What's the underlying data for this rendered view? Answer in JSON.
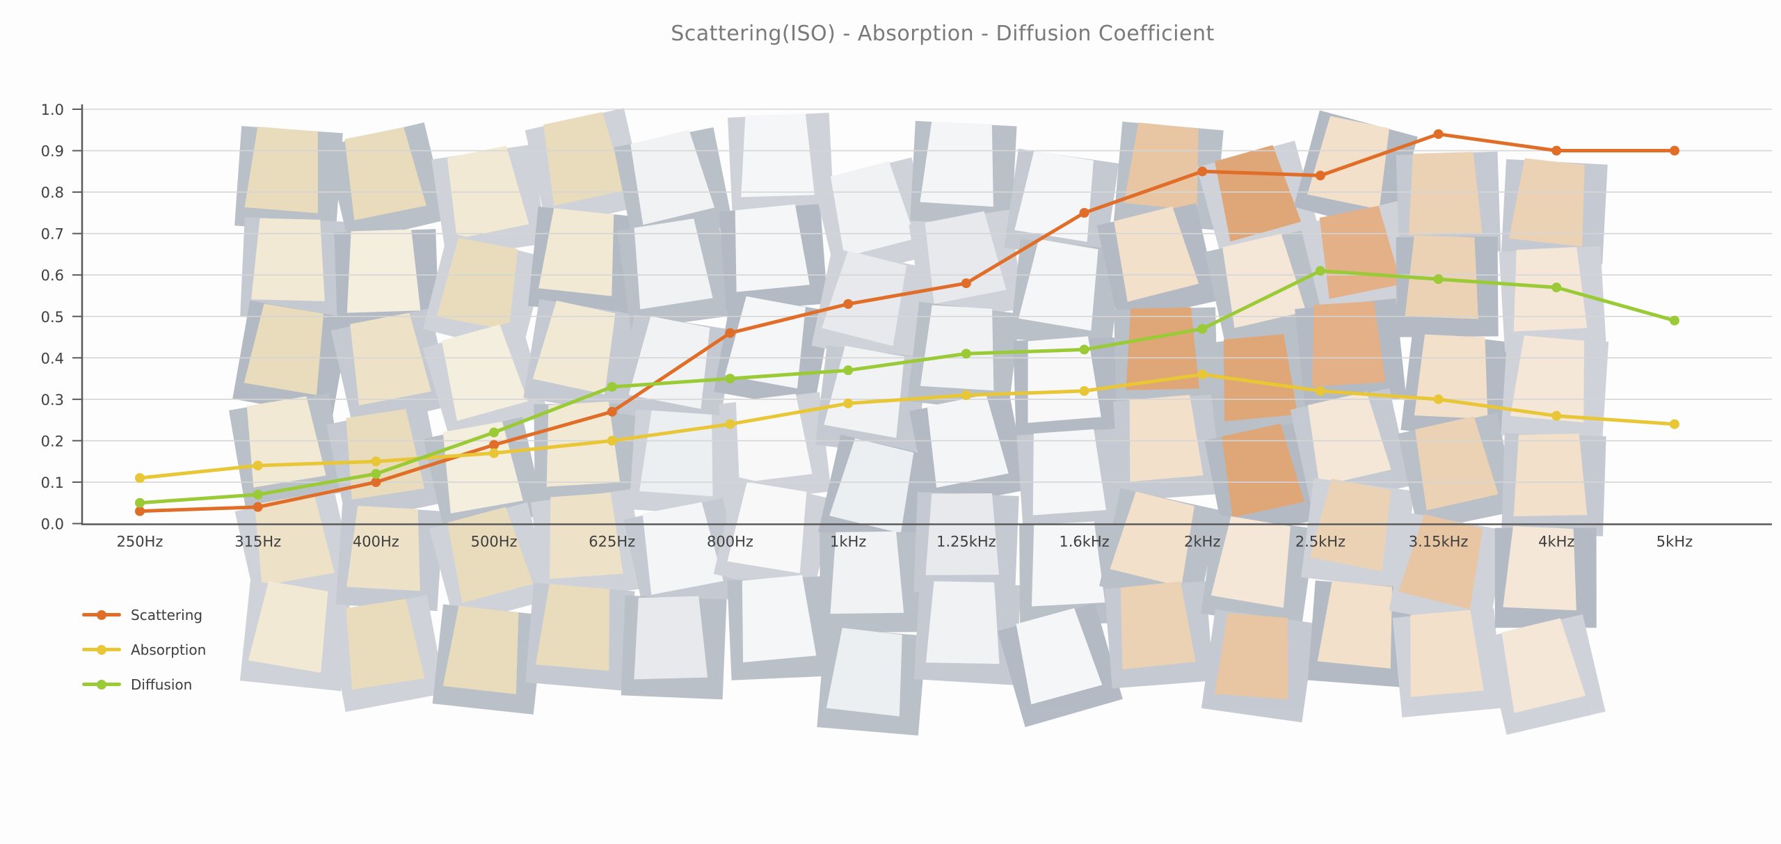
{
  "page": {
    "background_color": "#fdfdfd",
    "watermark": "faded wooden acoustic diffuser panel photo"
  },
  "chart_data": {
    "type": "line",
    "title": "Scattering(ISO) - Absorption - Diffusion Coefficient",
    "title_color": "#7a7a7a",
    "categories": [
      "250Hz",
      "315Hz",
      "400Hz",
      "500Hz",
      "625Hz",
      "800Hz",
      "1kHz",
      "1.25kHz",
      "1.6kHz",
      "2kHz",
      "2.5kHz",
      "3.15kHz",
      "4kHz",
      "5kHz"
    ],
    "series": [
      {
        "name": "Scattering",
        "color": "#E06E28",
        "values": [
          0.03,
          0.04,
          0.1,
          0.19,
          0.27,
          0.46,
          0.53,
          0.58,
          0.75,
          0.85,
          0.84,
          0.94,
          0.9,
          0.9
        ]
      },
      {
        "name": "Absorption",
        "color": "#E8C636",
        "values": [
          0.11,
          0.14,
          0.15,
          0.17,
          0.2,
          0.24,
          0.29,
          0.31,
          0.32,
          0.36,
          0.32,
          0.3,
          0.26,
          0.24
        ]
      },
      {
        "name": "Diffusion",
        "color": "#9ACA36",
        "values": [
          0.05,
          0.07,
          0.12,
          0.22,
          0.33,
          0.35,
          0.37,
          0.41,
          0.42,
          0.47,
          0.61,
          0.59,
          0.57,
          0.49
        ]
      }
    ],
    "y_axis": {
      "min": 0.0,
      "max": 1.0,
      "step": 0.1,
      "tick_labels": [
        "0.0",
        "0.1",
        "0.2",
        "0.3",
        "0.4",
        "0.5",
        "0.6",
        "0.7",
        "0.8",
        "0.9",
        "1.0"
      ]
    },
    "x_axis": {
      "tick_labels": [
        "250Hz",
        "315Hz",
        "400Hz",
        "500Hz",
        "625Hz",
        "800Hz",
        "1kHz",
        "1.25kHz",
        "1.6kHz",
        "2kHz",
        "2.5kHz",
        "3.15kHz",
        "4kHz",
        "5kHz"
      ]
    },
    "grid": "horizontal",
    "grid_color": "#d5d5d5",
    "axis_color": "#5a5a5a",
    "tick_label_color": "#3f3f3f",
    "legend_position": "bottom-left",
    "ylim": [
      0.0,
      1.0
    ]
  }
}
